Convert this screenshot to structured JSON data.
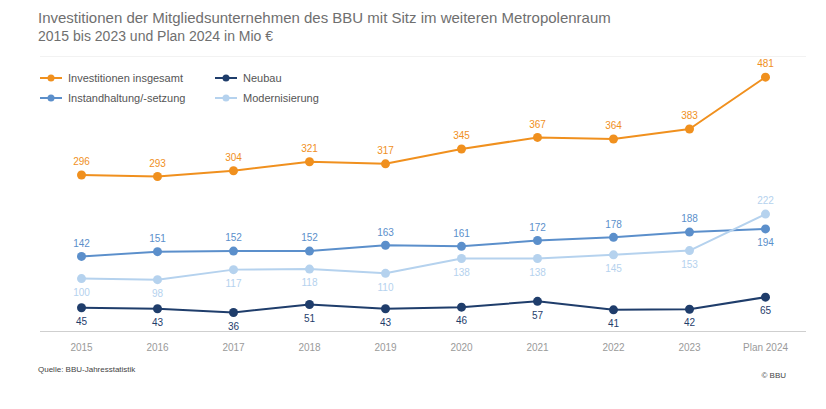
{
  "chart_data": {
    "type": "line",
    "title": "Investitionen der Mitgliedsunternehmen des BBU mit Sitz im weiteren Metropolenraum",
    "subtitle": "2015 bis 2023 und Plan 2024 in Mio €",
    "source": "Quelle: BBU-Jahresstatistik",
    "credit": "© BBU",
    "categories": [
      "2015",
      "2016",
      "2017",
      "2018",
      "2019",
      "2020",
      "2021",
      "2022",
      "2023",
      "Plan 2024"
    ],
    "series": [
      {
        "name": "Investitionen insgesamt",
        "color": "#f0901e",
        "marker": "circle",
        "values": [
          296,
          293,
          304,
          321,
          317,
          345,
          367,
          364,
          383,
          481
        ]
      },
      {
        "name": "Neubau",
        "color": "#1f3d6b",
        "marker": "circle",
        "values": [
          45,
          43,
          36,
          51,
          43,
          46,
          57,
          41,
          42,
          65
        ]
      },
      {
        "name": "Instandhaltung/-setzung",
        "color": "#5b8fcb",
        "marker": "circle",
        "values": [
          142,
          151,
          152,
          152,
          163,
          161,
          172,
          178,
          188,
          194
        ]
      },
      {
        "name": "Modernisierung",
        "color": "#b5d2ee",
        "marker": "circle",
        "values": [
          100,
          98,
          117,
          118,
          110,
          138,
          138,
          145,
          153,
          222
        ]
      }
    ],
    "ylim": [
      0,
      520
    ],
    "grid": false,
    "legend": "top-left",
    "data_labels": true,
    "tick_labels": "x"
  }
}
